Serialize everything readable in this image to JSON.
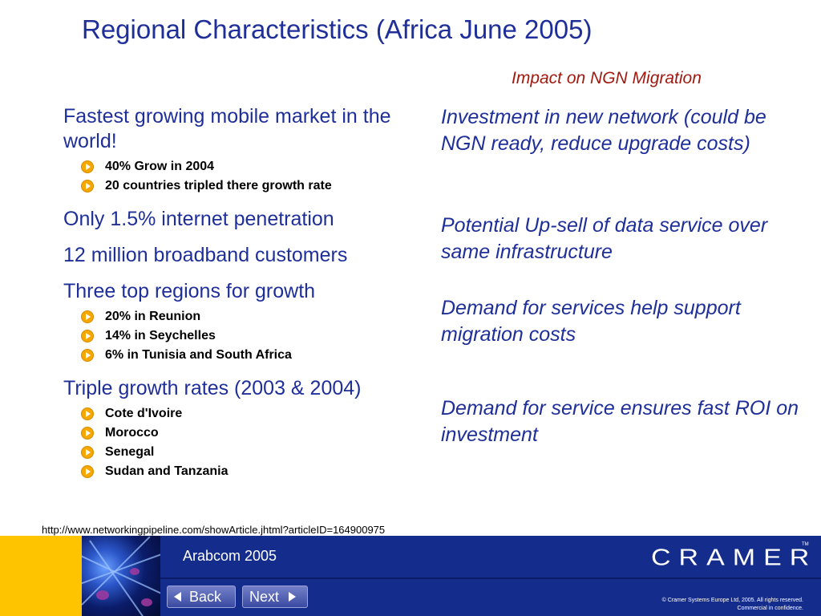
{
  "slide": {
    "title": "Regional Characteristics (Africa June 2005)",
    "right_heading": "Impact on NGN Migration"
  },
  "left_points": [
    {
      "text": "Fastest growing mobile market in the world!",
      "subs": [
        "40% Grow in 2004",
        "20 countries tripled there growth rate"
      ]
    },
    {
      "text": "Only 1.5% internet penetration",
      "subs": []
    },
    {
      "text": "12 million broadband customers",
      "subs": []
    },
    {
      "text": "Three top regions for growth",
      "subs": [
        "20% in Reunion",
        "14% in Seychelles",
        "6% in Tunisia and South Africa"
      ]
    },
    {
      "text": "Triple growth rates (2003 & 2004)",
      "subs": [
        "Cote d'Ivoire",
        "Morocco",
        "Senegal",
        "Sudan and Tanzania"
      ]
    }
  ],
  "right_points": [
    "Investment in new network (could be NGN ready, reduce upgrade costs)",
    "Potential Up-sell of data service over same  infrastructure",
    "Demand for services help support migration costs",
    "Demand for service ensures fast ROI on investment"
  ],
  "source_url": "http://www.networkingpipeline.com/showArticle.jhtml?articleID=164900975",
  "footer": {
    "conference": "Arabcom 2005",
    "logo_text": "CRAMER",
    "trademark": "TM",
    "back_label": "Back",
    "next_label": "Next",
    "copyright_line1": "© Cramer Systems Europe Ltd, 2005. All rights reserved.",
    "copyright_line2": "Commercial in confidence."
  },
  "colors": {
    "title_blue": "#1f2f99",
    "impact_red": "#a01a10",
    "footer_blue": "#142c8c",
    "footer_yellow": "#ffc400",
    "bullet_orange": "#f5a800"
  },
  "icons": {
    "bullet": "orange-circle-arrow-icon",
    "back": "arrow-left-icon",
    "next": "arrow-right-icon"
  }
}
